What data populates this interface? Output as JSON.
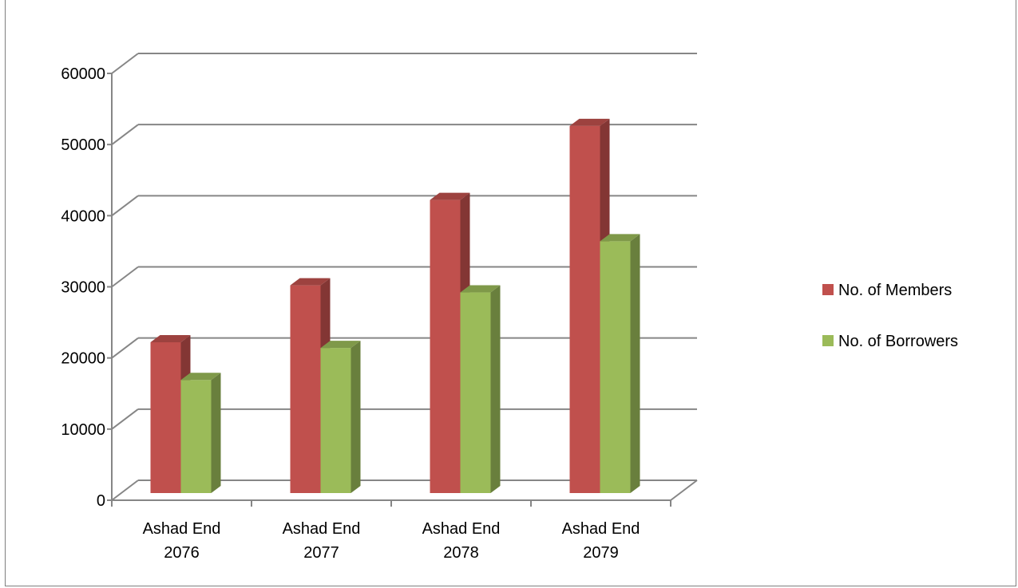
{
  "chart_data": {
    "type": "bar",
    "style": "3d-clustered-column",
    "categories": [
      [
        "Ashad End",
        "2076"
      ],
      [
        "Ashad End",
        "2077"
      ],
      [
        "Ashad End",
        "2078"
      ],
      [
        "Ashad End",
        "2079"
      ]
    ],
    "series": [
      {
        "name": "No. of Members",
        "color": "#C0504D",
        "values": [
          21200,
          29200,
          41200,
          51600
        ]
      },
      {
        "name": "No. of Borrowers",
        "color": "#9BBB59",
        "values": [
          15900,
          20400,
          28200,
          35400
        ]
      }
    ],
    "yticks": [
      "0",
      "10000",
      "20000",
      "30000",
      "40000",
      "50000",
      "60000"
    ],
    "ylim": [
      0,
      60000
    ],
    "grid": true,
    "legend": "right"
  }
}
